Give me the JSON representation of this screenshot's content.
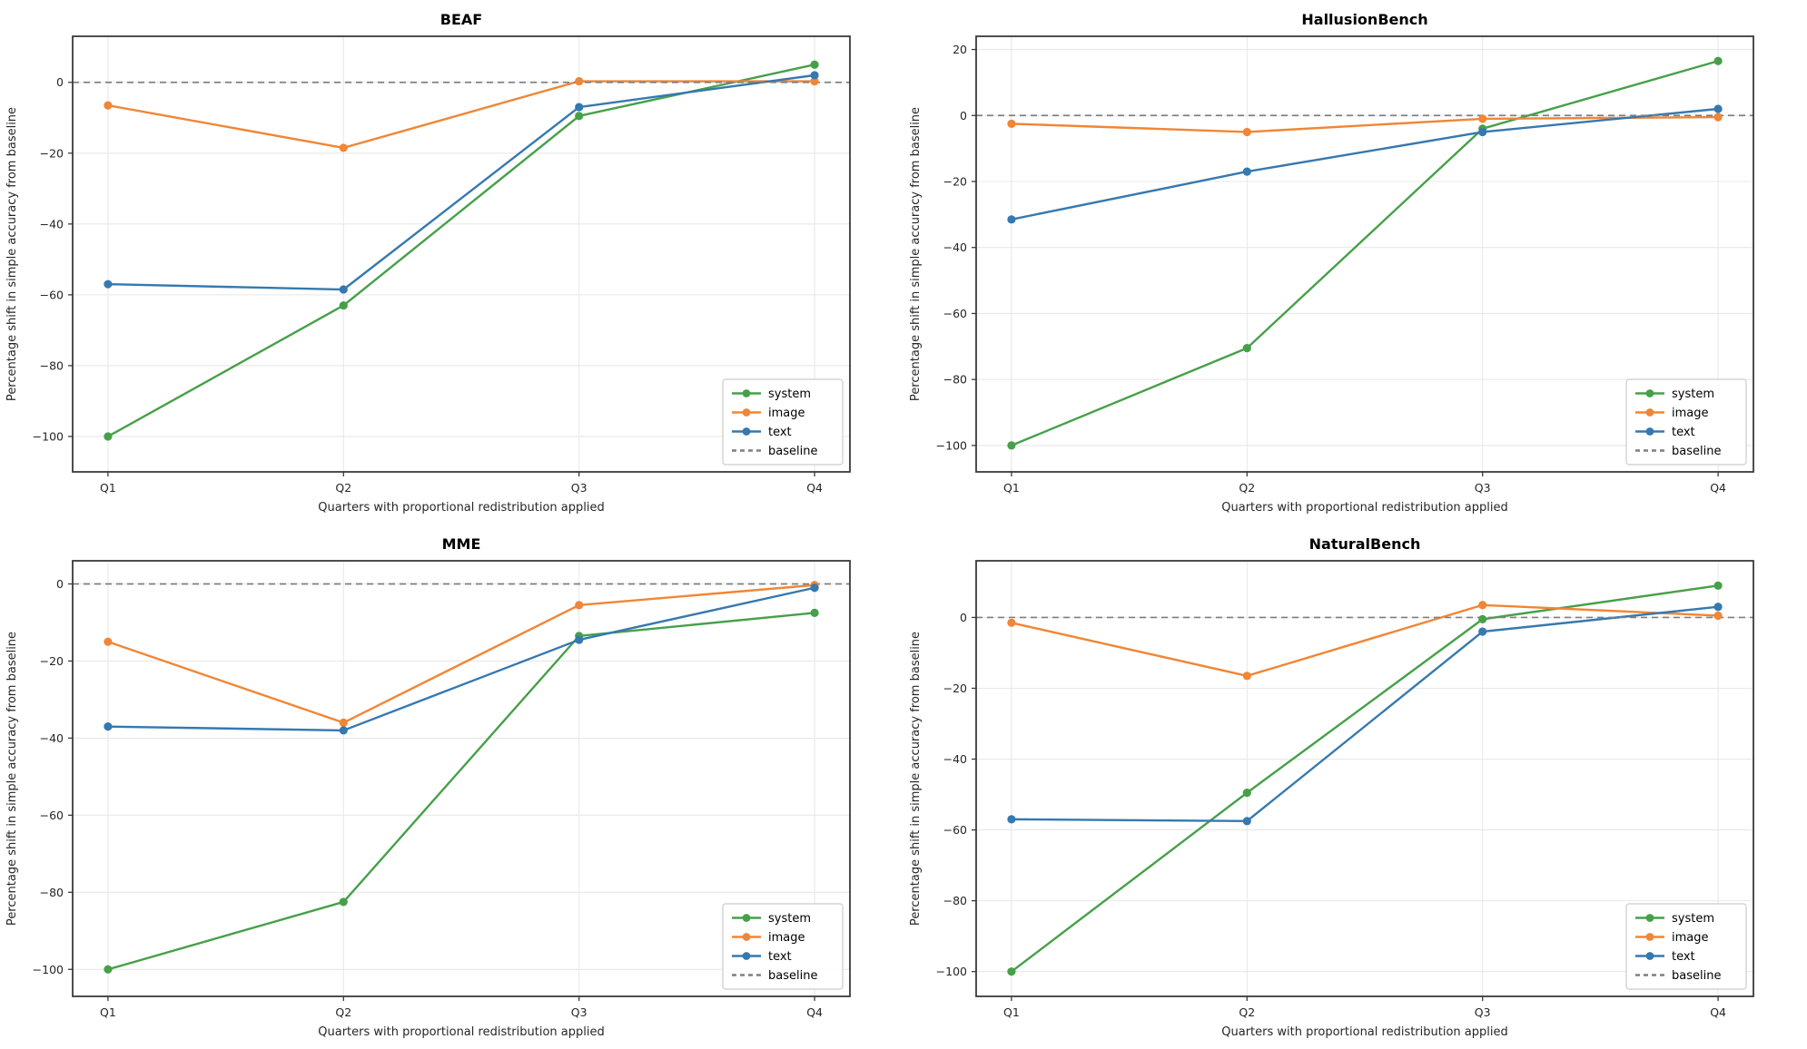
{
  "page": {
    "background": "#ffffff"
  },
  "style": {
    "series_colors": {
      "system": "#46a049",
      "image": "#f08636",
      "text": "#3678b0"
    },
    "baseline_color": "#7f7f7f",
    "grid_color": "#e8e8e8",
    "spine_color": "#3a3a3a",
    "tick_label_color": "#262626",
    "legend_border_color": "#cccccc"
  },
  "chart_data": [
    {
      "type": "line",
      "title": "BEAF",
      "x": [
        "Q1",
        "Q2",
        "Q3",
        "Q4"
      ],
      "xlabel": "Quarters with proportional redistribution applied",
      "ylabel": "Percentage shift in simple accuracy from baseline",
      "yticks": [
        0,
        -20,
        -40,
        -60,
        -80,
        -100
      ],
      "ylim": [
        -110,
        13
      ],
      "grid": true,
      "legend_position": "lower right",
      "series": [
        {
          "name": "system",
          "color": "#46a049",
          "values": [
            -100,
            -63,
            -9.5,
            5
          ]
        },
        {
          "name": "image",
          "color": "#f08636",
          "values": [
            -6.5,
            -18.5,
            0.3,
            0.3
          ]
        },
        {
          "name": "text",
          "color": "#3678b0",
          "values": [
            -57,
            -58.5,
            -7,
            2
          ]
        }
      ],
      "baseline": {
        "label": "baseline",
        "value": 0
      }
    },
    {
      "type": "line",
      "title": "HallusionBench",
      "x": [
        "Q1",
        "Q2",
        "Q3",
        "Q4"
      ],
      "xlabel": "Quarters with proportional redistribution applied",
      "ylabel": "Percentage shift in simple accuracy from baseline",
      "yticks": [
        20,
        0,
        -20,
        -40,
        -60,
        -80,
        -100
      ],
      "ylim": [
        -108,
        24
      ],
      "grid": true,
      "legend_position": "lower right",
      "series": [
        {
          "name": "system",
          "color": "#46a049",
          "values": [
            -100,
            -70.5,
            -4,
            16.5
          ]
        },
        {
          "name": "image",
          "color": "#f08636",
          "values": [
            -2.5,
            -5,
            -1,
            -0.5
          ]
        },
        {
          "name": "text",
          "color": "#3678b0",
          "values": [
            -31.5,
            -17,
            -5,
            2
          ]
        }
      ],
      "baseline": {
        "label": "baseline",
        "value": 0
      }
    },
    {
      "type": "line",
      "title": "MME",
      "x": [
        "Q1",
        "Q2",
        "Q3",
        "Q4"
      ],
      "xlabel": "Quarters with proportional redistribution applied",
      "ylabel": "Percentage shift in simple accuracy from baseline",
      "yticks": [
        0,
        -20,
        -40,
        -60,
        -80,
        -100
      ],
      "ylim": [
        -107,
        6
      ],
      "grid": true,
      "legend_position": "lower right",
      "series": [
        {
          "name": "system",
          "color": "#46a049",
          "values": [
            -100,
            -82.5,
            -13.5,
            -7.5
          ]
        },
        {
          "name": "image",
          "color": "#f08636",
          "values": [
            -15,
            -36,
            -5.5,
            -0.3
          ]
        },
        {
          "name": "text",
          "color": "#3678b0",
          "values": [
            -37,
            -38,
            -14.5,
            -1
          ]
        }
      ],
      "baseline": {
        "label": "baseline",
        "value": 0
      }
    },
    {
      "type": "line",
      "title": "NaturalBench",
      "x": [
        "Q1",
        "Q2",
        "Q3",
        "Q4"
      ],
      "xlabel": "Quarters with proportional redistribution applied",
      "ylabel": "Percentage shift in simple accuracy from baseline",
      "yticks": [
        0,
        -20,
        -40,
        -60,
        -80,
        -100
      ],
      "ylim": [
        -107,
        16
      ],
      "grid": true,
      "legend_position": "lower right",
      "series": [
        {
          "name": "system",
          "color": "#46a049",
          "values": [
            -100,
            -49.5,
            -0.5,
            9
          ]
        },
        {
          "name": "image",
          "color": "#f08636",
          "values": [
            -1.5,
            -16.5,
            3.5,
            0.5
          ]
        },
        {
          "name": "text",
          "color": "#3678b0",
          "values": [
            -57,
            -57.5,
            -4,
            3
          ]
        }
      ],
      "baseline": {
        "label": "baseline",
        "value": 0
      }
    }
  ]
}
